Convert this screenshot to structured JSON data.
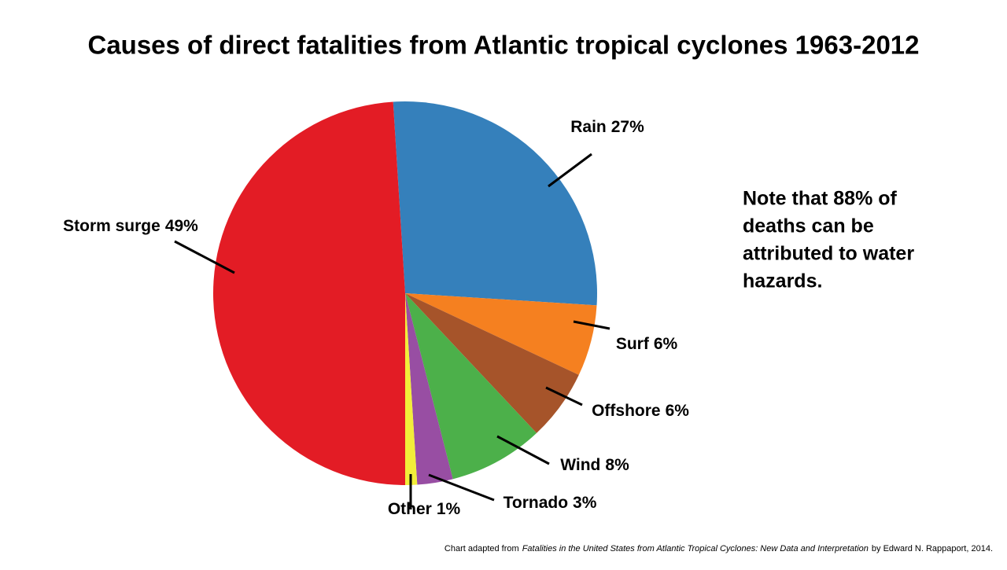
{
  "chart_data": {
    "type": "pie",
    "title": "Causes of direct fatalities from Atlantic tropical cyclones 1963-2012",
    "categories": [
      "Rain",
      "Surf",
      "Offshore",
      "Wind",
      "Tornado",
      "Other",
      "Storm surge"
    ],
    "values": [
      27,
      6,
      6,
      8,
      3,
      1,
      49
    ],
    "value_labels": [
      "27%",
      "6%",
      "6%",
      "8%",
      "3%",
      "1%",
      "49%"
    ],
    "colors": [
      "#3580bb",
      "#f58020",
      "#a6542a",
      "#4cb04a",
      "#984ea3",
      "#f2ee3a",
      "#e31c25"
    ],
    "note": [
      "Note that 88% of",
      "deaths can be",
      "attributed to water",
      "hazards."
    ],
    "source": {
      "prefix": "Chart adapted from",
      "title": "Fatalities in the United States from Atlantic Tropical Cyclones: New Data and Interpretation",
      "suffix": "by Edward N. Rappaport, 2014."
    }
  }
}
